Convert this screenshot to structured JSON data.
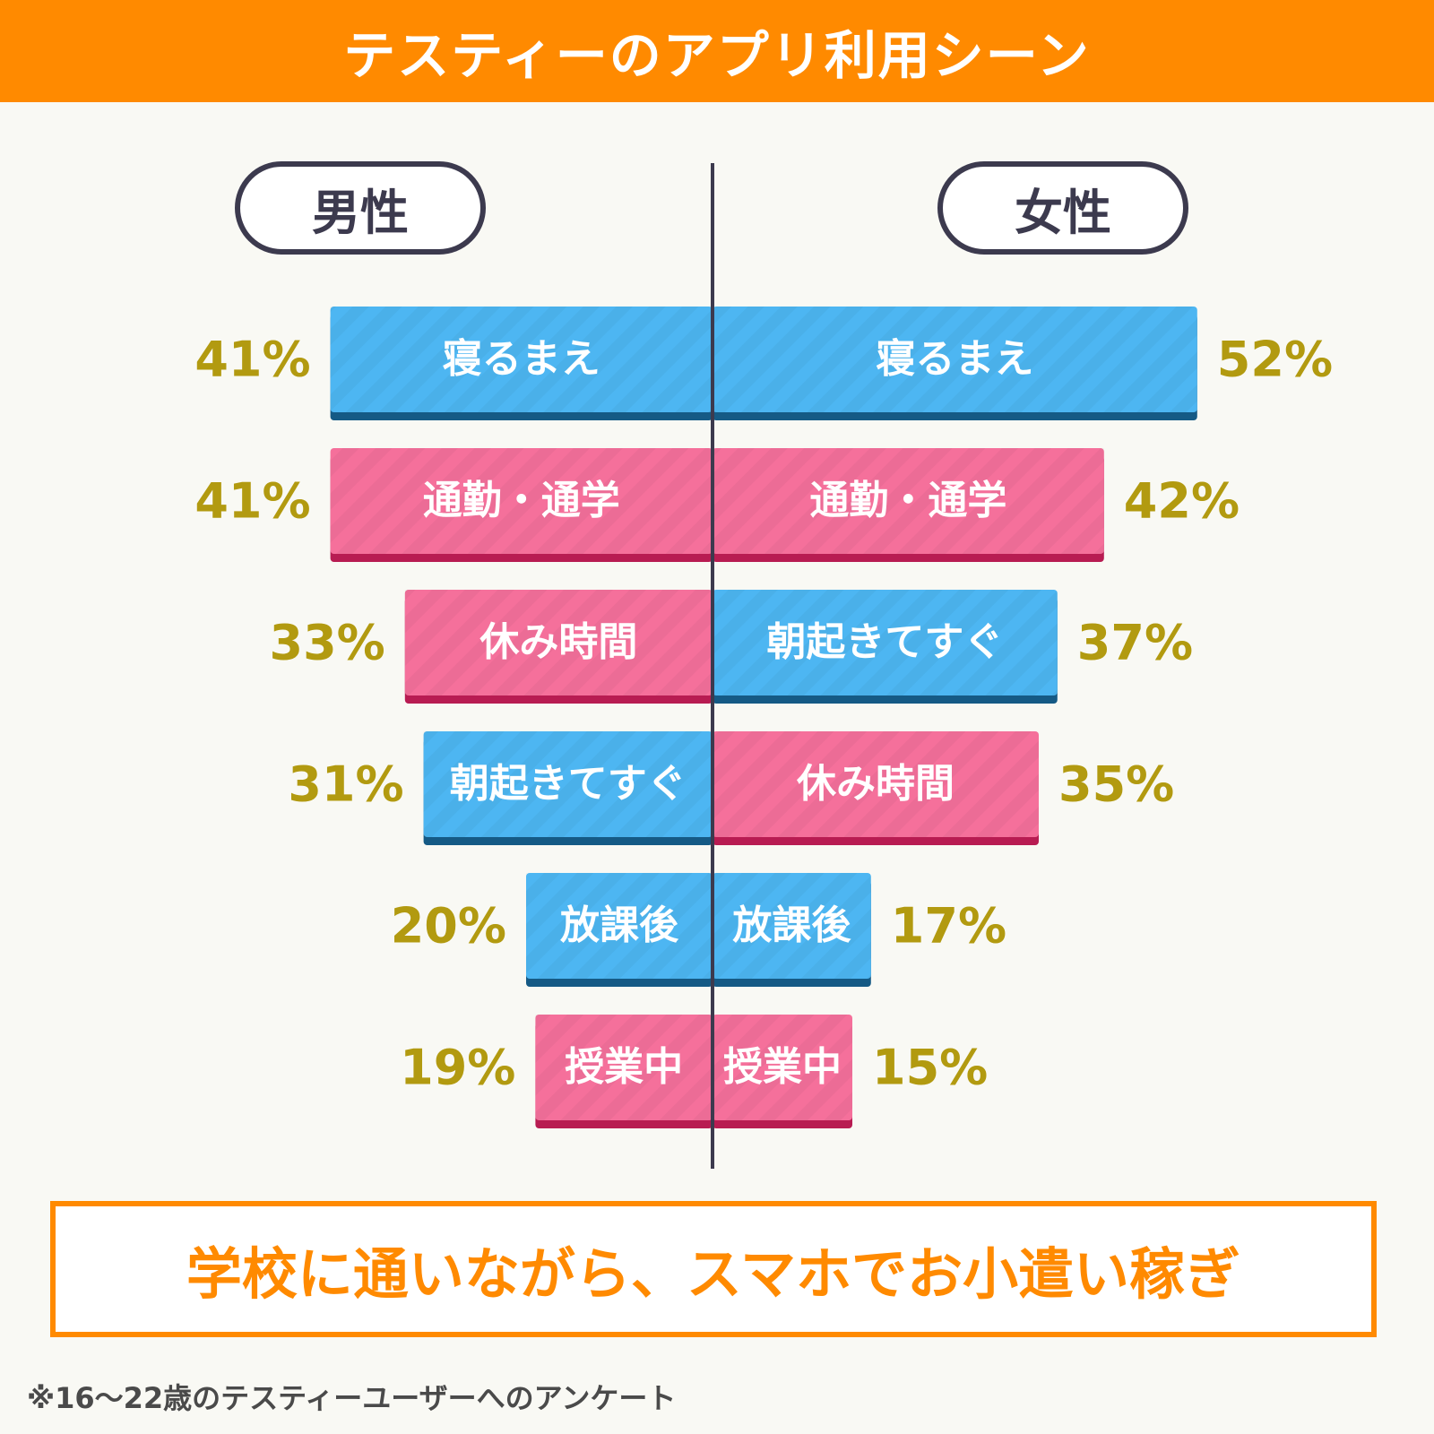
{
  "header": {
    "title": "テスティーのアプリ利用シーン"
  },
  "legend": {
    "male": "男性",
    "female": "女性"
  },
  "colors": {
    "blue": "#4db6f2",
    "blue_shadow": "#155a85",
    "pink": "#f5709b",
    "pink_shadow": "#b81c52",
    "percent": "#b29a10",
    "axis": "#3c3a4e",
    "accent": "#ff8a00"
  },
  "chart_data": {
    "type": "bar",
    "orientation": "horizontal-butterfly",
    "unit": "%",
    "series": [
      {
        "name": "男性",
        "items": [
          {
            "label": "寝るまえ",
            "value": 41,
            "pct": "41%",
            "color": "blue"
          },
          {
            "label": "通勤・通学",
            "value": 41,
            "pct": "41%",
            "color": "pink"
          },
          {
            "label": "休み時間",
            "value": 33,
            "pct": "33%",
            "color": "pink"
          },
          {
            "label": "朝起きてすぐ",
            "value": 31,
            "pct": "31%",
            "color": "blue"
          },
          {
            "label": "放課後",
            "value": 20,
            "pct": "20%",
            "color": "blue"
          },
          {
            "label": "授業中",
            "value": 19,
            "pct": "19%",
            "color": "pink"
          }
        ]
      },
      {
        "name": "女性",
        "items": [
          {
            "label": "寝るまえ",
            "value": 52,
            "pct": "52%",
            "color": "blue"
          },
          {
            "label": "通勤・通学",
            "value": 42,
            "pct": "42%",
            "color": "pink"
          },
          {
            "label": "朝起きてすぐ",
            "value": 37,
            "pct": "37%",
            "color": "blue"
          },
          {
            "label": "休み時間",
            "value": 35,
            "pct": "35%",
            "color": "pink"
          },
          {
            "label": "放課後",
            "value": 17,
            "pct": "17%",
            "color": "blue"
          },
          {
            "label": "授業中",
            "value": 15,
            "pct": "15%",
            "color": "pink"
          }
        ]
      }
    ]
  },
  "banner": {
    "text": "学校に通いながら、スマホでお小遣い稼ぎ"
  },
  "footnote": "※16〜22歳のテスティーユーザーへのアンケート"
}
